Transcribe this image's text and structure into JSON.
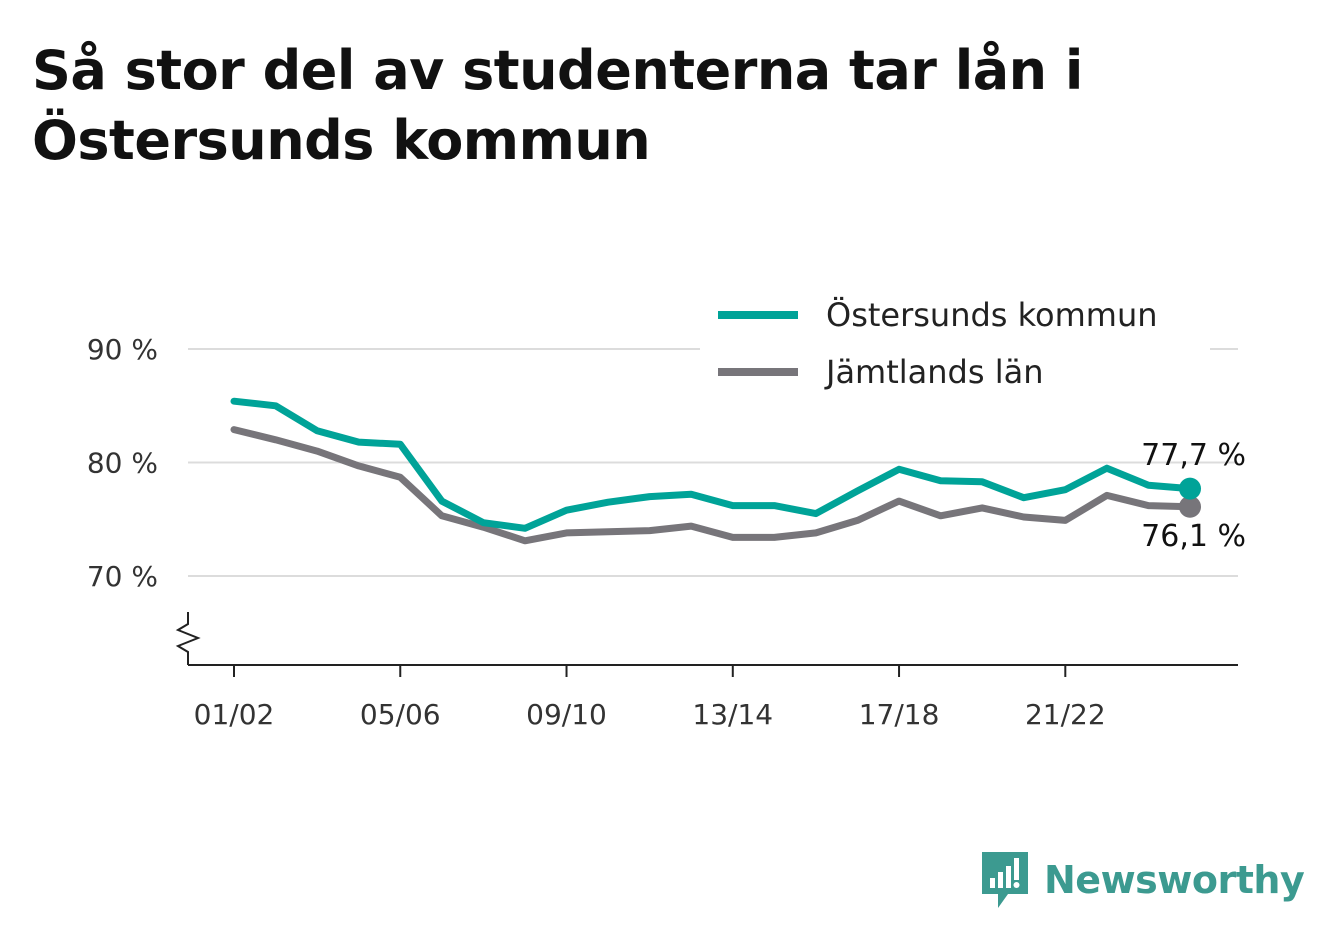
{
  "title": "Så stor del av studenterna tar lån i Östersunds kommun",
  "brand": {
    "name": "Newsworthy",
    "icon": "newsworthy-logo-icon",
    "color": "#3c9a90"
  },
  "chart_data": {
    "type": "line",
    "title": "Så stor del av studenterna tar lån i Östersunds kommun",
    "xlabel": "",
    "ylabel": "",
    "ylim": [
      62.2,
      90
    ],
    "yticks": [
      70,
      80,
      90
    ],
    "ytick_labels": [
      "70 %",
      "80 %",
      "90 %"
    ],
    "y_axis_break": true,
    "grid": true,
    "legend_position": "top-right",
    "x": [
      "01/02",
      "02/03",
      "03/04",
      "04/05",
      "05/06",
      "06/07",
      "07/08",
      "08/09",
      "09/10",
      "10/11",
      "11/12",
      "12/13",
      "13/14",
      "14/15",
      "15/16",
      "16/17",
      "17/18",
      "18/19",
      "19/20",
      "20/21",
      "21/22",
      "22/23",
      "23/24",
      "24/25"
    ],
    "xtick_labels": [
      "01/02",
      "05/06",
      "09/10",
      "13/14",
      "17/18",
      "21/22"
    ],
    "series": [
      {
        "name": "Östersunds kommun",
        "color": "#00a398",
        "values": [
          85.4,
          85.0,
          82.8,
          81.8,
          81.6,
          76.6,
          74.7,
          74.2,
          75.8,
          76.5,
          77.0,
          77.2,
          76.2,
          76.2,
          75.5,
          77.5,
          79.4,
          78.4,
          78.3,
          76.9,
          77.6,
          79.5,
          78.0,
          77.7
        ],
        "end_label": "77,7 %"
      },
      {
        "name": "Jämtlands län",
        "color": "#77757a",
        "values": [
          82.9,
          82.0,
          81.0,
          79.7,
          78.7,
          75.3,
          74.3,
          73.1,
          73.8,
          73.9,
          74.0,
          74.4,
          73.4,
          73.4,
          73.8,
          74.9,
          76.6,
          75.3,
          76.0,
          75.2,
          74.9,
          77.1,
          76.2,
          76.1
        ],
        "end_label": "76,1 %"
      }
    ]
  }
}
